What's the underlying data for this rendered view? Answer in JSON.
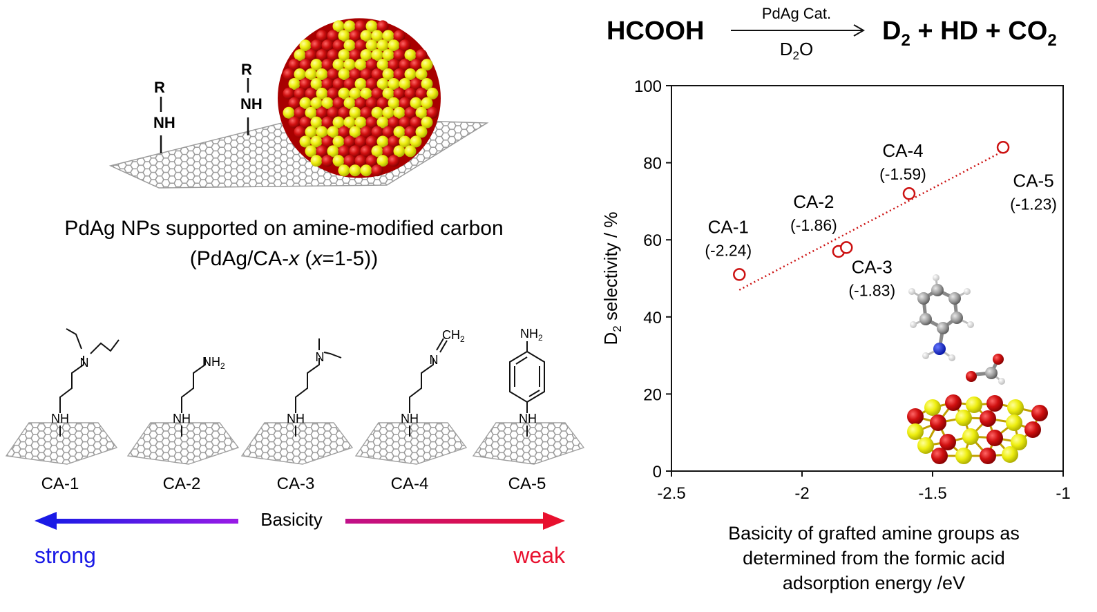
{
  "reaction": {
    "reactant": "HCOOH",
    "catalyst": "PdAg Cat.",
    "solvent_main": "D",
    "solvent_sub": "2",
    "solvent_tail": "O",
    "product_d2_main": "D",
    "product_d2_sub": "2",
    "product_mid": " + HD + CO",
    "product_co2_sub": "2"
  },
  "scheme": {
    "caption_line1": "PdAg NPs supported on amine-modified carbon",
    "caption_line2_pre": "(PdAg/CA-",
    "caption_line2_x": "x",
    "caption_line2_mid": " (",
    "caption_line2_x2": "x",
    "caption_line2_post": "=1-5))",
    "amine_r": "R",
    "amine_nh": "NH",
    "supports": [
      {
        "label": "CA-1"
      },
      {
        "label": "CA-2"
      },
      {
        "label": "CA-3"
      },
      {
        "label": "CA-4"
      },
      {
        "label": "CA-5"
      }
    ],
    "nh_label": "NH",
    "nh2_label": "NH",
    "nh2_sub": "2",
    "ch2_label": "CH",
    "ch2_sub": "2",
    "n_label": "N",
    "basicity_label": "Basicity",
    "strong_label": "strong",
    "weak_label": "weak",
    "colors": {
      "strong": "#1a1ae6",
      "weak": "#e8102e"
    }
  },
  "chart_data": {
    "type": "scatter",
    "title": "",
    "ylabel_main": "D",
    "ylabel_sub": "2",
    "ylabel_rest": " selectivity / %",
    "xlabel_lines": [
      "Basicity of grafted amine groups as",
      "determined from the formic acid",
      "adsorption energy /eV"
    ],
    "xlim": [
      -2.5,
      -1
    ],
    "ylim": [
      0,
      100
    ],
    "xticks": [
      -2.5,
      -2,
      -1.5,
      -1
    ],
    "xtick_labels": [
      "-2.5",
      "-2",
      "-1.5",
      "-1"
    ],
    "yticks": [
      0,
      20,
      40,
      60,
      80,
      100
    ],
    "ytick_labels": [
      "0",
      "20",
      "40",
      "60",
      "80",
      "100"
    ],
    "points": [
      {
        "name": "CA-1",
        "sub": "(-2.24)",
        "x": -2.24,
        "y": 51
      },
      {
        "name": "CA-2",
        "sub": "(-1.86)",
        "x": -1.86,
        "y": 57
      },
      {
        "name": "CA-3",
        "sub": "(-1.83)",
        "x": -1.83,
        "y": 58
      },
      {
        "name": "CA-4",
        "sub": "(-1.59)",
        "x": -1.59,
        "y": 72
      },
      {
        "name": "CA-5",
        "sub": "(-1.23)",
        "x": -1.23,
        "y": 84
      }
    ],
    "trendline": {
      "x": [
        -2.24,
        -1.23
      ],
      "y": [
        47,
        83
      ],
      "style": "dotted"
    },
    "grid": false,
    "marker_color": "#cc1111"
  }
}
